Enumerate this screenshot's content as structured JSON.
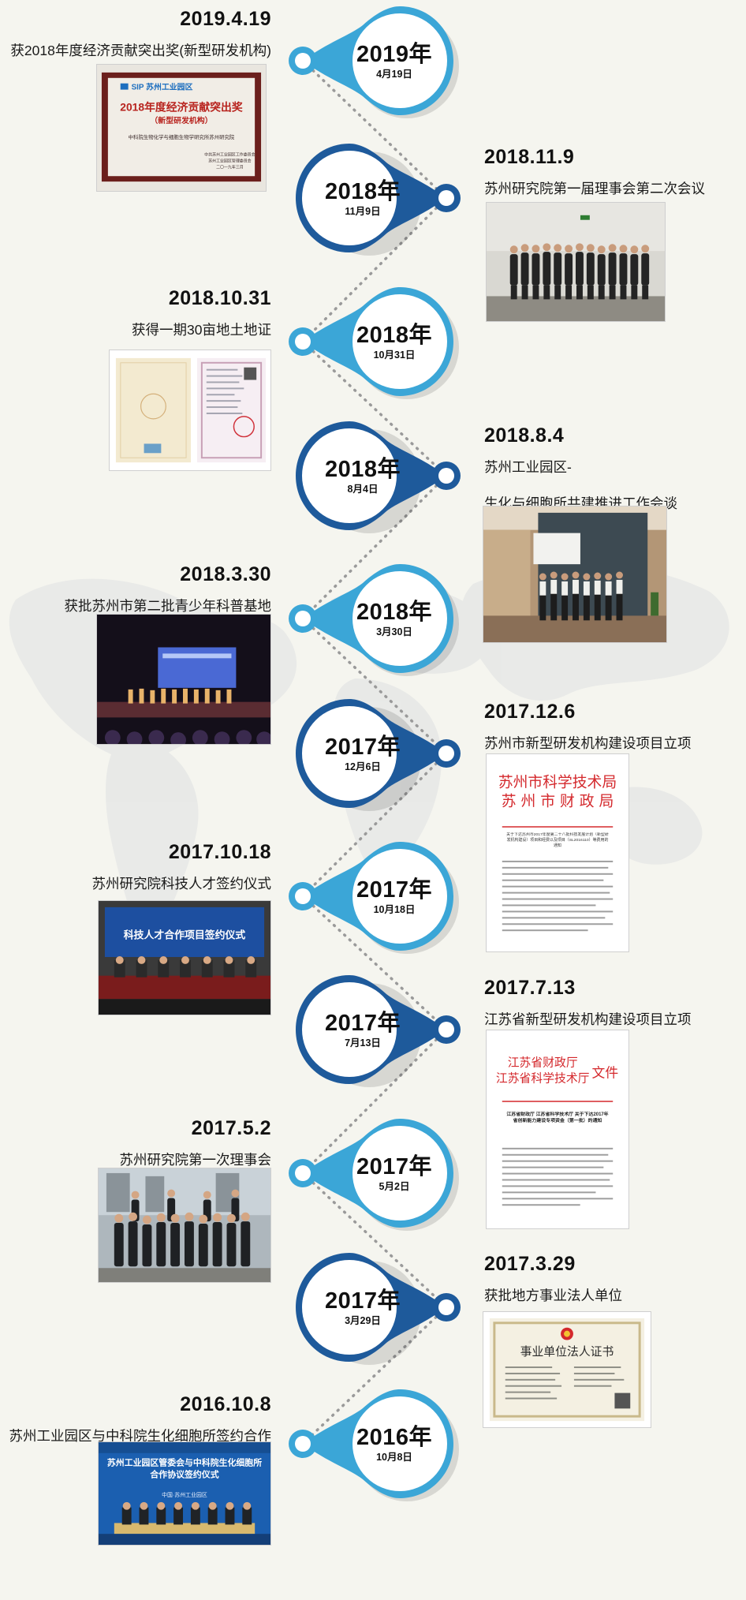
{
  "events": [
    {
      "id": "e1",
      "side": "left",
      "date": "2019.4.19",
      "lines": [
        "获2018年度经济贡献突出奖(新型研发机构)"
      ],
      "year": "2019年",
      "day": "4月19日",
      "photo": "award-plaque"
    },
    {
      "id": "e2",
      "side": "right",
      "date": "2018.11.9",
      "lines": [
        "苏州研究院第一届理事会第二次会议"
      ],
      "year": "2018年",
      "day": "11月9日",
      "photo": "group-meeting"
    },
    {
      "id": "e3",
      "side": "left",
      "date": "2018.10.31",
      "lines": [
        "获得一期30亩地土地证"
      ],
      "year": "2018年",
      "day": "10月31日",
      "photo": "land-certificate"
    },
    {
      "id": "e4",
      "side": "right",
      "date": "2018.8.4",
      "lines": [
        "苏州工业园区-",
        "生化与细胞所共建推进工作会谈"
      ],
      "year": "2018年",
      "day": "8月4日",
      "photo": "group-hall"
    },
    {
      "id": "e5",
      "side": "left",
      "date": "2018.3.30",
      "lines": [
        "获批苏州市第二批青少年科普基地"
      ],
      "year": "2018年",
      "day": "3月30日",
      "photo": "stage-ceremony"
    },
    {
      "id": "e6",
      "side": "right",
      "date": "2017.12.6",
      "lines": [
        "苏州市新型研发机构建设项目立项"
      ],
      "year": "2017年",
      "day": "12月6日",
      "photo": "document-suzhou"
    },
    {
      "id": "e7",
      "side": "left",
      "date": "2017.10.18",
      "lines": [
        "苏州研究院科技人才签约仪式"
      ],
      "year": "2017年",
      "day": "10月18日",
      "photo": "signing-stage"
    },
    {
      "id": "e8",
      "side": "right",
      "date": "2017.7.13",
      "lines": [
        "江苏省新型研发机构建设项目立项"
      ],
      "year": "2017年",
      "day": "7月13日",
      "photo": "document-jiangsu"
    },
    {
      "id": "e9",
      "side": "left",
      "date": "2017.5.2",
      "lines": [
        "苏州研究院第一次理事会"
      ],
      "year": "2017年",
      "day": "5月2日",
      "photo": "group-outdoor"
    },
    {
      "id": "e10",
      "side": "right",
      "date": "2017.3.29",
      "lines": [
        "获批地方事业法人单位"
      ],
      "year": "2017年",
      "day": "3月29日",
      "photo": "institution-certificate"
    },
    {
      "id": "e11",
      "side": "left",
      "date": "2016.10.8",
      "lines": [
        "苏州工业园区与中科院生化细胞所签约合作"
      ],
      "year": "2016年",
      "day": "10月8日",
      "photo": "signing-ceremony"
    }
  ],
  "photos": {
    "award_plaque": {
      "logo": "SIP 苏州工业园区",
      "title": "2018年度经济贡献突出奖",
      "subtitle": "（新型研发机构）",
      "recipient": "中科院生物化学与细胞生物学研究所苏州研究院",
      "issuer": "中共苏州工业园区工作委员会",
      "issuer2": "苏州工业园区管理委员会",
      "date": "二〇一九年三月"
    },
    "document_suzhou": {
      "header1": "苏州市科学技术局",
      "header2": "苏 州 市 财 政 局",
      "subject": "关于下达苏州市2017年度第二十八批科技发展计划（新型研发机构建设）项目和经费以及项目（SL2016110）等费用的通知"
    },
    "document_jiangsu": {
      "header1": "江苏省财政厅",
      "header2": "江苏省科学技术厅",
      "header_suffix": "文件",
      "subject": "江苏省财政厅 江苏省科学技术厅 关于下达2017年省创新能力建设专项资金（第一批）的通知"
    },
    "institution_certificate": {
      "title": "事业单位法人证书"
    },
    "signing_stage": {
      "banner": "科技人才合作项目签约仪式"
    },
    "signing_ceremony": {
      "banner": "苏州工业园区管委会与中科院生化细胞所合作协议签约仪式",
      "place": "中国·苏州工业园区"
    }
  },
  "colors": {
    "background": "#f5f5ef",
    "node_light": "#3ba6d7",
    "node_dark": "#1e5a9b",
    "node_mid": "#2a7fc1",
    "text": "#111111"
  }
}
